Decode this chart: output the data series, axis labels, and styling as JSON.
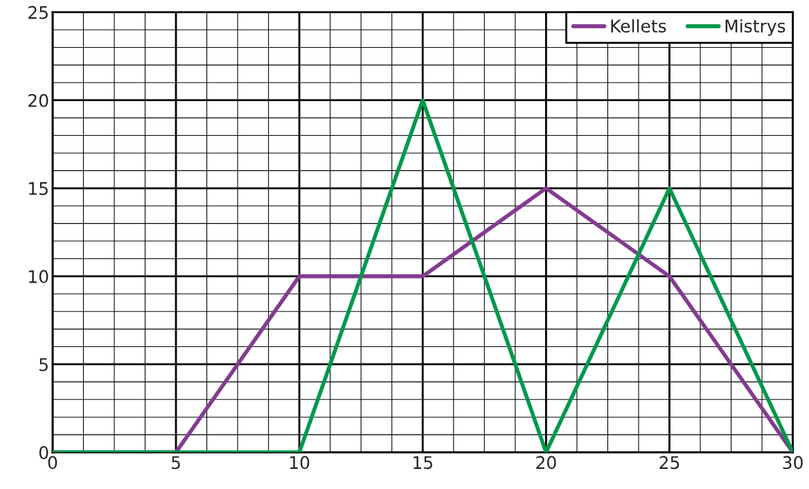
{
  "chart_data": {
    "type": "line",
    "series": [
      {
        "name": "Kellets",
        "color": "#833b91",
        "x": [
          0,
          5,
          10,
          15,
          20,
          25,
          30
        ],
        "values": [
          0,
          0,
          10,
          10,
          15,
          10,
          0
        ]
      },
      {
        "name": "Mistrys",
        "color": "#00994a",
        "x": [
          0,
          10,
          15,
          20,
          25,
          30
        ],
        "values": [
          0,
          0,
          20,
          0,
          15,
          0
        ]
      }
    ],
    "xlim": [
      0,
      30
    ],
    "xticks": [
      0,
      {
        "value": 1.25,
        "label": null
      },
      {
        "value": 2.5,
        "label": null
      },
      {
        "value": 3.75,
        "label": null
      },
      5,
      {
        "value": 6.25,
        "label": null
      },
      {
        "value": 7.5,
        "label": null
      },
      {
        "value": 8.75,
        "label": null
      },
      10,
      {
        "value": 11.25,
        "label": null
      },
      {
        "value": 12.5,
        "label": null
      },
      {
        "value": 13.75,
        "label": null
      },
      15,
      {
        "value": 16.25,
        "label": null
      },
      {
        "value": 17.5,
        "label": null
      },
      {
        "value": 18.75,
        "label": null
      },
      20,
      {
        "value": 21.25,
        "label": null
      },
      {
        "value": 22.5,
        "label": null
      },
      {
        "value": 23.75,
        "label": null
      },
      25,
      {
        "value": 26.25,
        "label": null
      },
      {
        "value": 27.5,
        "label": null
      },
      {
        "value": 28.75,
        "label": null
      },
      30
    ],
    "ylim": [
      0,
      25
    ],
    "yticks": [
      0,
      {
        "value": 1,
        "label": null
      },
      {
        "value": 2,
        "label": null
      },
      {
        "value": 3,
        "label": null
      },
      {
        "value": 4,
        "label": null
      },
      5,
      {
        "value": 6,
        "label": null
      },
      {
        "value": 7,
        "label": null
      },
      {
        "value": 8,
        "label": null
      },
      {
        "value": 9,
        "label": null
      },
      10,
      {
        "value": 11,
        "label": null
      },
      {
        "value": 12,
        "label": null
      },
      {
        "value": 13,
        "label": null
      },
      {
        "value": 14,
        "label": null
      },
      15,
      {
        "value": 16,
        "label": null
      },
      {
        "value": 17,
        "label": null
      },
      {
        "value": 18,
        "label": null
      },
      {
        "value": 19,
        "label": null
      },
      20,
      {
        "value": 21,
        "label": null
      },
      {
        "value": 22,
        "label": null
      },
      {
        "value": 23,
        "label": null
      },
      {
        "value": 24,
        "label": null
      },
      25
    ],
    "grid": true,
    "legend": "top right",
    "marker": "none",
    "line_style": "solid"
  }
}
